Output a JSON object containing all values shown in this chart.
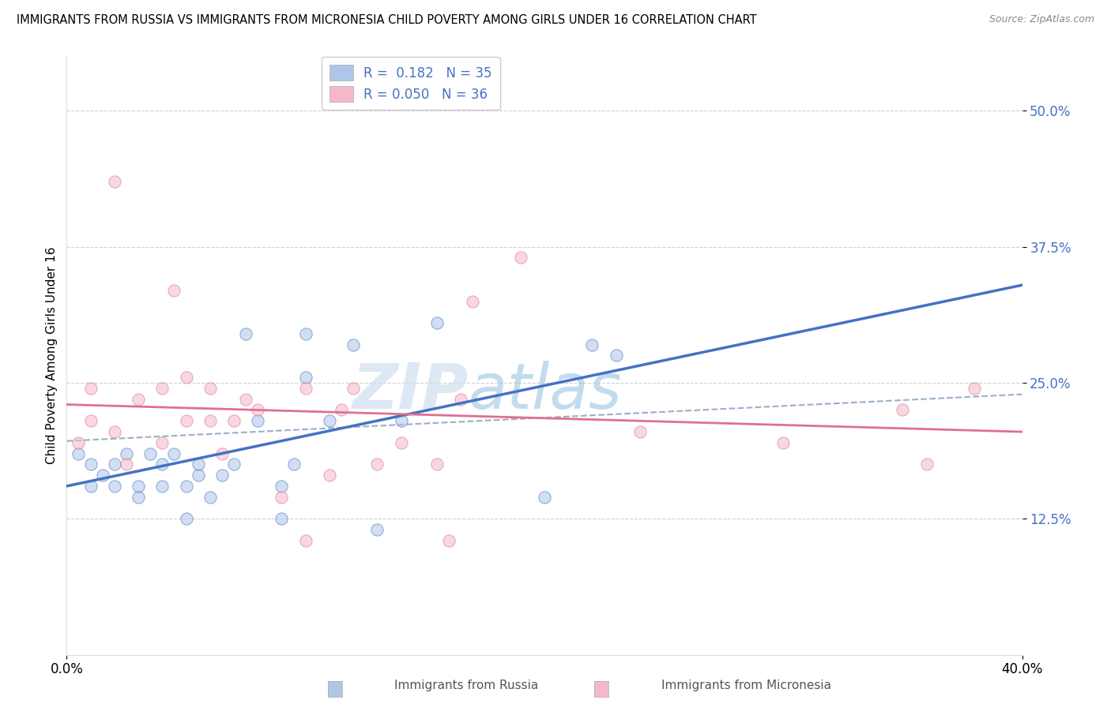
{
  "title": "IMMIGRANTS FROM RUSSIA VS IMMIGRANTS FROM MICRONESIA CHILD POVERTY AMONG GIRLS UNDER 16 CORRELATION CHART",
  "source": "Source: ZipAtlas.com",
  "ylabel": "Child Poverty Among Girls Under 16",
  "xlim": [
    0.0,
    0.4
  ],
  "ylim": [
    0.0,
    0.55
  ],
  "yticks": [
    0.125,
    0.25,
    0.375,
    0.5
  ],
  "ytick_labels": [
    "12.5%",
    "25.0%",
    "37.5%",
    "50.0%"
  ],
  "xticks": [
    0.0,
    0.4
  ],
  "xtick_labels": [
    "0.0%",
    "40.0%"
  ],
  "russia_R": 0.182,
  "russia_N": 35,
  "micronesia_R": 0.05,
  "micronesia_N": 36,
  "russia_color": "#aec6e8",
  "russia_line_color": "#4472c4",
  "micronesia_color": "#f4b8c8",
  "micronesia_line_color": "#e07090",
  "trend_line_color": "#9ab0c8",
  "background_color": "#ffffff",
  "russia_scatter_x": [
    0.005,
    0.01,
    0.01,
    0.015,
    0.02,
    0.02,
    0.025,
    0.03,
    0.03,
    0.035,
    0.04,
    0.04,
    0.045,
    0.05,
    0.05,
    0.055,
    0.055,
    0.06,
    0.065,
    0.07,
    0.075,
    0.08,
    0.09,
    0.09,
    0.095,
    0.1,
    0.1,
    0.11,
    0.12,
    0.13,
    0.14,
    0.155,
    0.2,
    0.22,
    0.23
  ],
  "russia_scatter_y": [
    0.185,
    0.175,
    0.155,
    0.165,
    0.155,
    0.175,
    0.185,
    0.155,
    0.145,
    0.185,
    0.155,
    0.175,
    0.185,
    0.155,
    0.125,
    0.165,
    0.175,
    0.145,
    0.165,
    0.175,
    0.295,
    0.215,
    0.155,
    0.125,
    0.175,
    0.295,
    0.255,
    0.215,
    0.285,
    0.115,
    0.215,
    0.305,
    0.145,
    0.285,
    0.275
  ],
  "micronesia_scatter_x": [
    0.005,
    0.01,
    0.01,
    0.02,
    0.02,
    0.025,
    0.03,
    0.04,
    0.04,
    0.045,
    0.05,
    0.05,
    0.06,
    0.06,
    0.065,
    0.07,
    0.075,
    0.08,
    0.09,
    0.1,
    0.1,
    0.11,
    0.115,
    0.12,
    0.13,
    0.14,
    0.155,
    0.16,
    0.165,
    0.17,
    0.19,
    0.24,
    0.3,
    0.35,
    0.36,
    0.38
  ],
  "micronesia_scatter_y": [
    0.195,
    0.215,
    0.245,
    0.205,
    0.435,
    0.175,
    0.235,
    0.195,
    0.245,
    0.335,
    0.215,
    0.255,
    0.215,
    0.245,
    0.185,
    0.215,
    0.235,
    0.225,
    0.145,
    0.105,
    0.245,
    0.165,
    0.225,
    0.245,
    0.175,
    0.195,
    0.175,
    0.105,
    0.235,
    0.325,
    0.365,
    0.205,
    0.195,
    0.225,
    0.175,
    0.245
  ],
  "watermark_zip": "ZIP",
  "watermark_atlas": "atlas",
  "grid_color": "#cccccc",
  "scatter_size": 120,
  "scatter_alpha": 0.55,
  "legend_loc": "upper center"
}
